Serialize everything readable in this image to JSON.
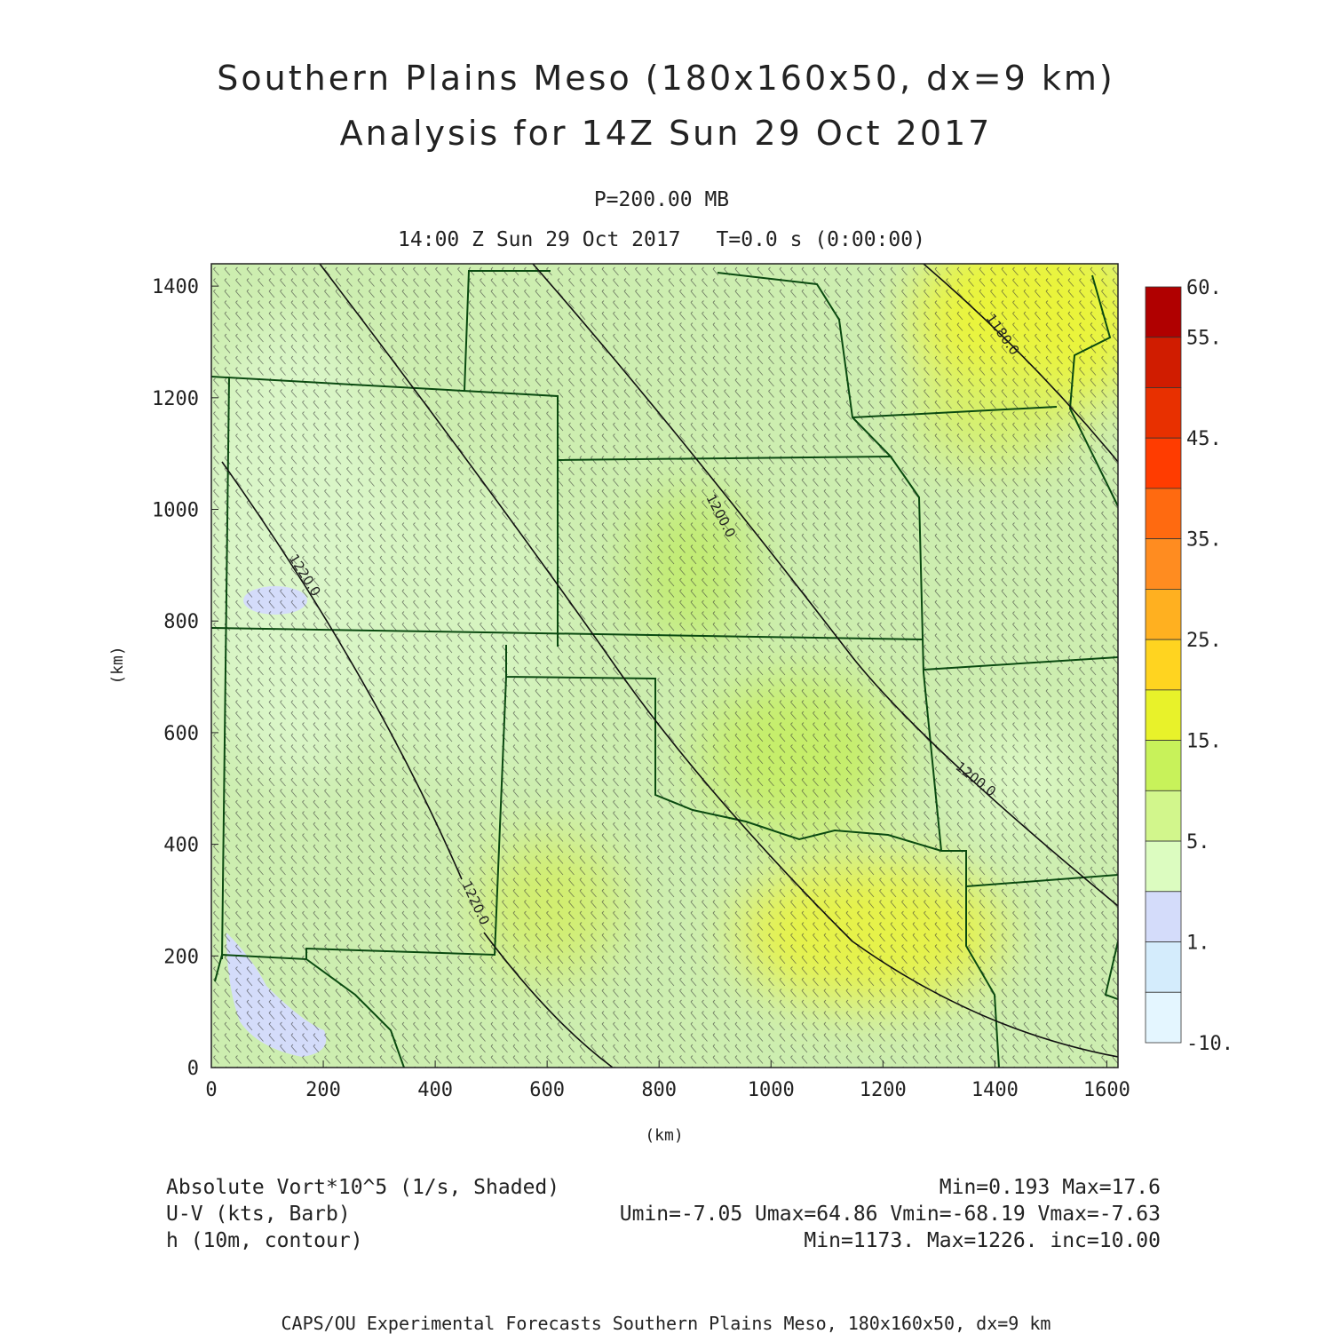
{
  "title_line1": "Southern Plains Meso (180x160x50, dx=9 km)",
  "title_line2": "Analysis for 14Z Sun 29 Oct 2017",
  "pressure_level": "P=200.00 MB",
  "valid_time": "14:00 Z Sun 29 Oct 2017",
  "forecast_time": "T=0.0 s (0:00:00)",
  "axes": {
    "x_label": "(km)",
    "y_label": "(km)",
    "x_ticks": [
      "0",
      "200",
      "400",
      "600",
      "800",
      "1000",
      "1200",
      "1400",
      "1600"
    ],
    "y_ticks": [
      "0",
      "200",
      "400",
      "600",
      "800",
      "1000",
      "1200",
      "1400"
    ],
    "x_range_km": [
      0,
      1620
    ],
    "y_range_km": [
      0,
      1440
    ]
  },
  "colorbar": {
    "labels": [
      "60.",
      "55.",
      "45.",
      "35.",
      "25.",
      "15.",
      "5.",
      "1.",
      "-10."
    ],
    "colors": [
      "#b00000",
      "#d01c00",
      "#e83000",
      "#ff3c00",
      "#ff6a10",
      "#ff8c20",
      "#ffb020",
      "#ffd420",
      "#e8f22a",
      "#c8f25a",
      "#d2f68c",
      "#dcfcc0",
      "#d4dcfa",
      "#d4ecfc",
      "#e4f6ff"
    ]
  },
  "contours": [
    {
      "label": "1180.0"
    },
    {
      "label": "1200.0"
    },
    {
      "label": "1200.0"
    },
    {
      "label": "1220.0"
    },
    {
      "label": "1220.0"
    }
  ],
  "legend": {
    "shaded_field": "Absolute Vort*10^5 (1/s, Shaded)",
    "shaded_stats": "Min=0.193 Max=17.6",
    "barb_field": "U-V (kts, Barb)",
    "barb_stats": "Umin=-7.05 Umax=64.86 Vmin=-68.19 Vmax=-7.63",
    "contour_field": "h (10m, contour)",
    "contour_stats": "Min=1173. Max=1226. inc=10.00"
  },
  "credit": "CAPS/OU Experimental Forecasts  Southern Plains Meso, 180x160x50, dx=9 km"
}
